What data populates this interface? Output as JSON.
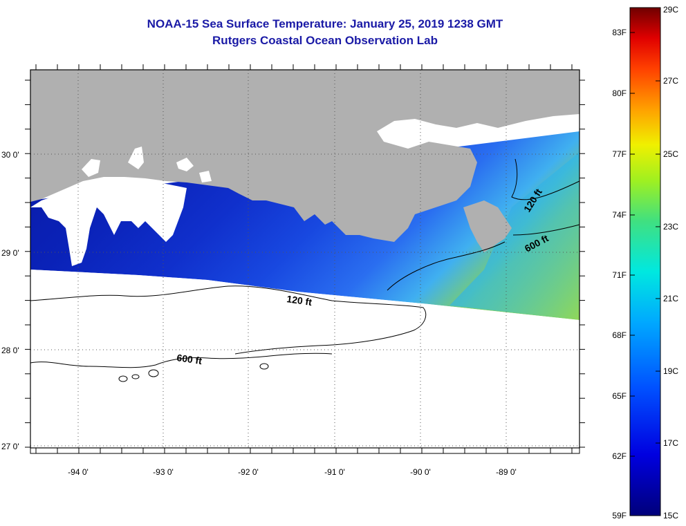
{
  "header": {
    "title": "NOAA-15 Sea Surface Temperature:  January 25, 2019 1238 GMT",
    "subtitle": "Rutgers Coastal Ocean Observation Lab"
  },
  "map": {
    "lat_labels": [
      "30 0'",
      "29 0'",
      "28 0'",
      "27 0'"
    ],
    "lon_labels": [
      "-94 0'",
      "-93 0'",
      "-92 0'",
      "-91 0'",
      "-90 0'",
      "-89 0'"
    ],
    "contour_labels": [
      "120 ft",
      "600 ft",
      "120 ft",
      "600 ft"
    ],
    "colors": {
      "land": "#b0b0b0",
      "cloud": "#ffffff",
      "frame": "#000000"
    }
  },
  "colorbar": {
    "fahrenheit_labels": [
      "83F",
      "80F",
      "77F",
      "74F",
      "71F",
      "68F",
      "65F",
      "62F",
      "59F"
    ],
    "celsius_labels": [
      "29C",
      "27C",
      "25C",
      "23C",
      "21C",
      "19C",
      "17C",
      "15C"
    ],
    "min_c": 15,
    "max_c": 29
  }
}
